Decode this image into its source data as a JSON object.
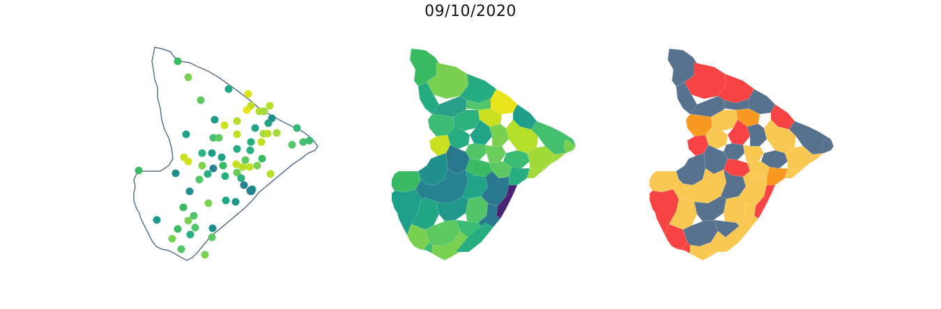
{
  "title": "09/10/2020",
  "panels": [
    {
      "type": "points",
      "outline_color": "#5a7189"
    },
    {
      "type": "choropleth-continuous",
      "colormap": "viridis"
    },
    {
      "type": "choropleth-categorical",
      "colors": {
        "gray-blue": "#56728f",
        "red": "#f74343",
        "orange": "#f89a22",
        "yellow": "#f9c852"
      }
    }
  ]
}
